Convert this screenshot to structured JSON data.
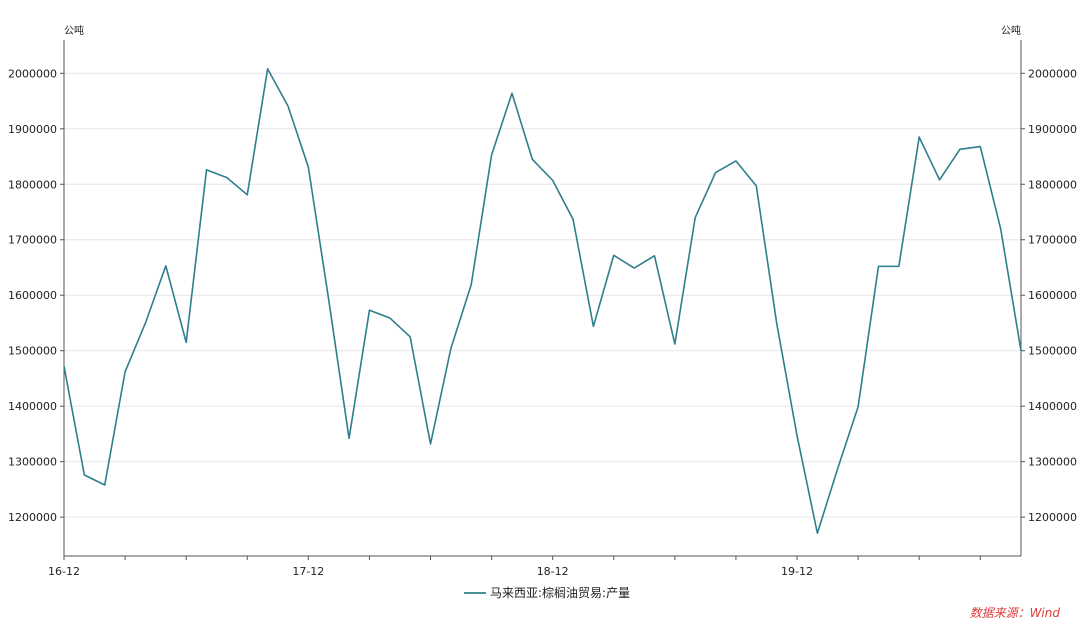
{
  "chart_data": {
    "type": "line",
    "unit_left": "公吨",
    "unit_right": "公吨",
    "x_tick_labels": [
      "16-12",
      "17-12",
      "18-12",
      "19-12"
    ],
    "y_ticks": [
      "1200000",
      "1300000",
      "1400000",
      "1500000",
      "1600000",
      "1700000",
      "1800000",
      "1900000",
      "2000000"
    ],
    "ylim": [
      1130000,
      2060000
    ],
    "x": [
      "2016-12",
      "2017-01",
      "2017-02",
      "2017-03",
      "2017-04",
      "2017-05",
      "2017-06",
      "2017-07",
      "2017-08",
      "2017-09",
      "2017-10",
      "2017-11",
      "2017-12",
      "2018-01",
      "2018-02",
      "2018-03",
      "2018-04",
      "2018-05",
      "2018-06",
      "2018-07",
      "2018-08",
      "2018-09",
      "2018-10",
      "2018-11",
      "2018-12",
      "2019-01",
      "2019-02",
      "2019-03",
      "2019-04",
      "2019-05",
      "2019-06",
      "2019-07",
      "2019-08",
      "2019-09",
      "2019-10",
      "2019-11",
      "2019-12",
      "2020-01",
      "2020-02",
      "2020-03",
      "2020-04",
      "2020-05",
      "2020-06",
      "2020-07",
      "2020-08",
      "2020-09",
      "2020-10",
      "2020-11"
    ],
    "series": [
      {
        "name": "马来西亚:棕榈油贸易:产量",
        "color": "#2e7f8c",
        "values": [
          1472000,
          1276000,
          1258000,
          1462000,
          1550000,
          1653000,
          1515000,
          1826000,
          1812000,
          1781000,
          2008000,
          1941000,
          1831000,
          1592000,
          1342000,
          1573000,
          1559000,
          1525000,
          1332000,
          1504000,
          1619000,
          1853000,
          1964000,
          1845000,
          1807000,
          1737000,
          1544000,
          1672000,
          1649000,
          1671000,
          1512000,
          1740000,
          1821000,
          1842000,
          1797000,
          1550000,
          1347000,
          1171000,
          1288000,
          1399000,
          1652000,
          1652000,
          1885000,
          1808000,
          1863000,
          1868000,
          1720000,
          1500000
        ]
      }
    ],
    "legend_position": "bottom-center",
    "grid": true
  },
  "source": "数据来源：Wind"
}
